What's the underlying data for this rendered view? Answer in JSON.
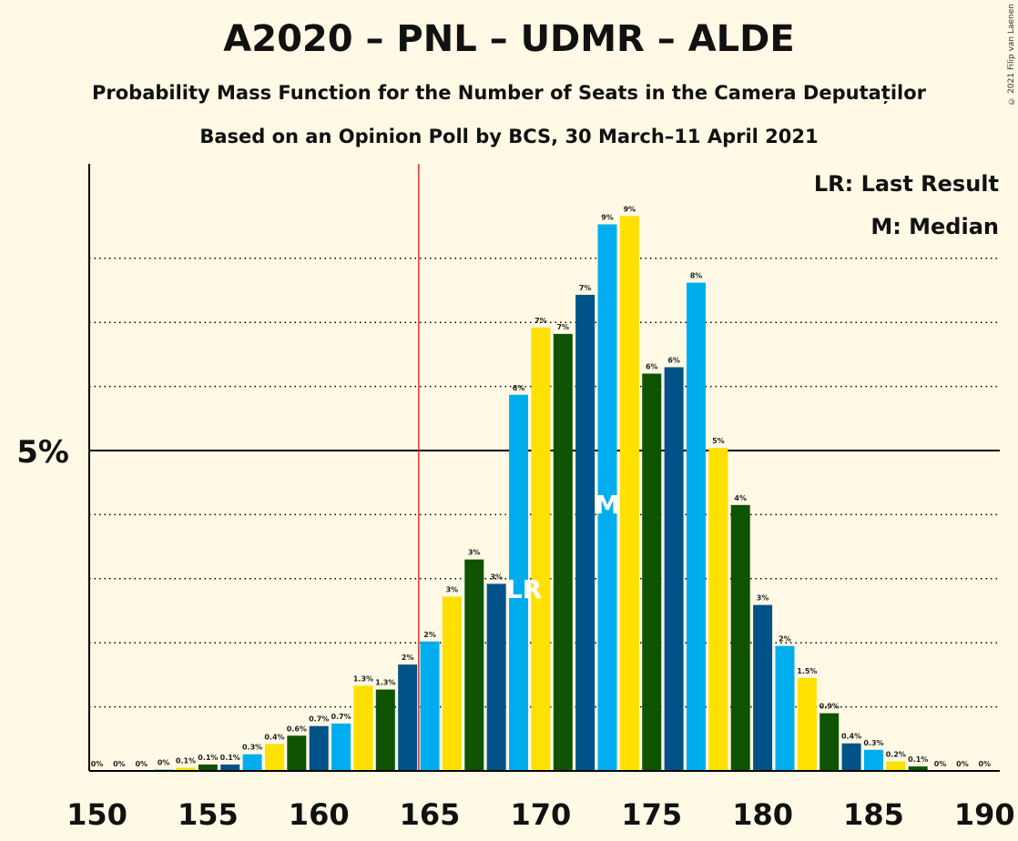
{
  "title": "A2020 – PNL – UDMR – ALDE",
  "subtitle": "Probability Mass Function for the Number of Seats in the Camera Deputaților",
  "subtitle2": "Based on an Opinion Poll by BCS, 30 March–11 April 2021",
  "copyright": "© 2021 Filip van Laenen",
  "chart_data": {
    "type": "bar",
    "title": "A2020 – PNL – UDMR – ALDE",
    "xlabel": "",
    "ylabel": "",
    "x": [
      150,
      151,
      152,
      153,
      154,
      155,
      156,
      157,
      158,
      159,
      160,
      161,
      162,
      163,
      164,
      165,
      166,
      167,
      168,
      169,
      170,
      171,
      172,
      173,
      174,
      175,
      176,
      177,
      178,
      179,
      180,
      181,
      182,
      183,
      184,
      185,
      186,
      187,
      188,
      189,
      190
    ],
    "values": [
      0,
      0,
      0,
      0.02,
      0.05,
      0.1,
      0.1,
      0.26,
      0.42,
      0.55,
      0.7,
      0.74,
      1.33,
      1.27,
      1.66,
      2.02,
      2.72,
      3.3,
      2.92,
      5.87,
      6.92,
      6.82,
      7.43,
      8.53,
      8.66,
      6.2,
      6.3,
      7.62,
      5.04,
      4.15,
      2.59,
      1.95,
      1.45,
      0.9,
      0.43,
      0.33,
      0.15,
      0.07,
      0,
      0,
      0
    ],
    "labels": [
      "0%",
      "0%",
      "0%",
      "0%",
      "0.1%",
      "0.1%",
      "0.1%",
      "0.3%",
      "0.4%",
      "0.6%",
      "0.7%",
      "0.7%",
      "1.3%",
      "1.3%",
      "2%",
      "2%",
      "3%",
      "3%",
      "3%",
      "6%",
      "7%",
      "7%",
      "7%",
      "9%",
      "9%",
      "6%",
      "6%",
      "8%",
      "5%",
      "4%",
      "3%",
      "2%",
      "1.5%",
      "0.9%",
      "0.4%",
      "0.3%",
      "0.2%",
      "0.1%",
      "0%",
      "0%",
      "0%"
    ],
    "colors": [
      "#FFE000",
      "#0F5300",
      "#005288",
      "#00AEEF"
    ],
    "ylim": [
      0,
      9.5
    ],
    "ytick_label": "5%",
    "ytick_value": 5,
    "dotted_gridlines": [
      1,
      2,
      3,
      4,
      6,
      7,
      8
    ],
    "xticks": [
      150,
      155,
      160,
      165,
      170,
      175,
      180,
      185,
      190
    ],
    "last_result": 169,
    "last_result_label": "LR",
    "median": 173,
    "median_label": "M",
    "majority_line": 165,
    "legend": [
      "LR: Last Result",
      "M: Median"
    ],
    "legend_placement": "top-right"
  }
}
